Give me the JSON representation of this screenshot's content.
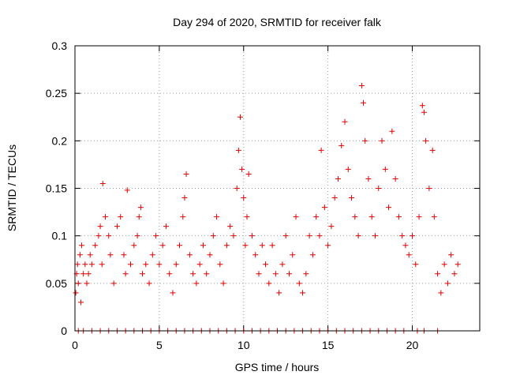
{
  "chart_data": {
    "type": "scatter",
    "title": "Day 294 of 2020, SRMTID for receiver falk",
    "xlabel": "GPS time / hours",
    "ylabel": "SRMTID / TECUs",
    "xlim": [
      0,
      24
    ],
    "ylim": [
      0,
      0.3
    ],
    "x_ticks": [
      0,
      5,
      10,
      15,
      20
    ],
    "x_tick_labels": [
      "0",
      "5",
      "10",
      "15",
      "20"
    ],
    "y_ticks": [
      0,
      0.05,
      0.1,
      0.15,
      0.2,
      0.25,
      0.3
    ],
    "y_tick_labels": [
      "0",
      "0.05",
      "0.1",
      "0.15",
      "0.2",
      "0.25",
      "0.3"
    ],
    "grid": true,
    "legend": "none",
    "marker": "+",
    "marker_color": "#e00000",
    "series": [
      {
        "name": "SRMTID",
        "points": [
          [
            0.05,
            0.04
          ],
          [
            0.1,
            0.06
          ],
          [
            0.15,
            0.07
          ],
          [
            0.2,
            0.05
          ],
          [
            0.3,
            0.08
          ],
          [
            0.35,
            0.03
          ],
          [
            0.4,
            0.09
          ],
          [
            0.5,
            0.06
          ],
          [
            0.6,
            0.07
          ],
          [
            0.7,
            0.05
          ],
          [
            0.8,
            0.06
          ],
          [
            0.9,
            0.08
          ],
          [
            1.0,
            0.07
          ],
          [
            1.2,
            0.09
          ],
          [
            1.4,
            0.1
          ],
          [
            1.5,
            0.11
          ],
          [
            1.6,
            0.07
          ],
          [
            1.65,
            0.155
          ],
          [
            1.8,
            0.12
          ],
          [
            2.0,
            0.1
          ],
          [
            2.1,
            0.08
          ],
          [
            2.3,
            0.05
          ],
          [
            2.5,
            0.11
          ],
          [
            2.7,
            0.12
          ],
          [
            2.9,
            0.08
          ],
          [
            3.0,
            0.06
          ],
          [
            3.1,
            0.148
          ],
          [
            3.3,
            0.07
          ],
          [
            3.5,
            0.09
          ],
          [
            3.7,
            0.1
          ],
          [
            3.8,
            0.12
          ],
          [
            3.9,
            0.13
          ],
          [
            4.0,
            0.06
          ],
          [
            4.2,
            0.07
          ],
          [
            4.4,
            0.05
          ],
          [
            4.6,
            0.08
          ],
          [
            4.8,
            0.1
          ],
          [
            5.0,
            0.07
          ],
          [
            5.2,
            0.09
          ],
          [
            5.4,
            0.11
          ],
          [
            5.6,
            0.06
          ],
          [
            5.8,
            0.04
          ],
          [
            6.0,
            0.07
          ],
          [
            6.2,
            0.09
          ],
          [
            6.4,
            0.12
          ],
          [
            6.5,
            0.14
          ],
          [
            6.6,
            0.165
          ],
          [
            6.8,
            0.08
          ],
          [
            7.0,
            0.06
          ],
          [
            7.2,
            0.05
          ],
          [
            7.4,
            0.07
          ],
          [
            7.6,
            0.09
          ],
          [
            7.8,
            0.06
          ],
          [
            8.0,
            0.08
          ],
          [
            8.2,
            0.1
          ],
          [
            8.4,
            0.12
          ],
          [
            8.6,
            0.07
          ],
          [
            8.8,
            0.05
          ],
          [
            9.0,
            0.09
          ],
          [
            9.2,
            0.11
          ],
          [
            9.4,
            0.1
          ],
          [
            9.6,
            0.15
          ],
          [
            9.7,
            0.19
          ],
          [
            9.8,
            0.225
          ],
          [
            9.9,
            0.17
          ],
          [
            10.0,
            0.14
          ],
          [
            10.1,
            0.09
          ],
          [
            10.2,
            0.12
          ],
          [
            10.3,
            0.165
          ],
          [
            10.5,
            0.1
          ],
          [
            10.7,
            0.08
          ],
          [
            10.9,
            0.06
          ],
          [
            11.1,
            0.09
          ],
          [
            11.3,
            0.07
          ],
          [
            11.5,
            0.05
          ],
          [
            11.7,
            0.09
          ],
          [
            11.9,
            0.06
          ],
          [
            12.1,
            0.04
          ],
          [
            12.3,
            0.07
          ],
          [
            12.5,
            0.1
          ],
          [
            12.7,
            0.06
          ],
          [
            12.9,
            0.08
          ],
          [
            13.1,
            0.12
          ],
          [
            13.3,
            0.05
          ],
          [
            13.5,
            0.04
          ],
          [
            13.7,
            0.06
          ],
          [
            13.9,
            0.1
          ],
          [
            14.1,
            0.08
          ],
          [
            14.3,
            0.12
          ],
          [
            14.5,
            0.1
          ],
          [
            14.6,
            0.19
          ],
          [
            14.8,
            0.13
          ],
          [
            15.0,
            0.09
          ],
          [
            15.2,
            0.11
          ],
          [
            15.4,
            0.14
          ],
          [
            15.6,
            0.16
          ],
          [
            15.8,
            0.195
          ],
          [
            16.0,
            0.22
          ],
          [
            16.2,
            0.17
          ],
          [
            16.4,
            0.14
          ],
          [
            16.6,
            0.12
          ],
          [
            16.8,
            0.1
          ],
          [
            17.0,
            0.258
          ],
          [
            17.1,
            0.24
          ],
          [
            17.2,
            0.2
          ],
          [
            17.4,
            0.16
          ],
          [
            17.6,
            0.12
          ],
          [
            17.8,
            0.1
          ],
          [
            18.0,
            0.15
          ],
          [
            18.2,
            0.2
          ],
          [
            18.4,
            0.17
          ],
          [
            18.6,
            0.13
          ],
          [
            18.8,
            0.21
          ],
          [
            19.0,
            0.16
          ],
          [
            19.2,
            0.12
          ],
          [
            19.4,
            0.1
          ],
          [
            19.6,
            0.09
          ],
          [
            19.8,
            0.08
          ],
          [
            20.0,
            0.1
          ],
          [
            20.2,
            0.07
          ],
          [
            20.4,
            0.12
          ],
          [
            20.6,
            0.237
          ],
          [
            20.7,
            0.23
          ],
          [
            20.8,
            0.2
          ],
          [
            21.0,
            0.15
          ],
          [
            21.2,
            0.19
          ],
          [
            21.3,
            0.12
          ],
          [
            21.5,
            0.06
          ],
          [
            21.7,
            0.04
          ],
          [
            21.9,
            0.07
          ],
          [
            22.1,
            0.05
          ],
          [
            22.3,
            0.08
          ],
          [
            22.5,
            0.06
          ],
          [
            22.7,
            0.07
          ],
          [
            0.2,
            0
          ],
          [
            0.5,
            0
          ],
          [
            1.0,
            0
          ],
          [
            1.5,
            0
          ],
          [
            2.0,
            0
          ],
          [
            2.5,
            0
          ],
          [
            3.0,
            0
          ],
          [
            3.5,
            0
          ],
          [
            4.0,
            0
          ],
          [
            4.5,
            0
          ],
          [
            5.0,
            0
          ],
          [
            5.5,
            0
          ],
          [
            6.0,
            0
          ],
          [
            6.5,
            0
          ],
          [
            7.0,
            0
          ],
          [
            7.5,
            0
          ],
          [
            8.0,
            0
          ],
          [
            8.5,
            0
          ],
          [
            9.0,
            0
          ],
          [
            9.5,
            0
          ],
          [
            10.0,
            0
          ],
          [
            10.5,
            0
          ],
          [
            11.0,
            0
          ],
          [
            11.5,
            0
          ],
          [
            12.0,
            0
          ],
          [
            12.5,
            0
          ],
          [
            13.0,
            0
          ],
          [
            13.5,
            0
          ],
          [
            14.0,
            0
          ],
          [
            14.5,
            0
          ],
          [
            15.0,
            0
          ],
          [
            15.5,
            0
          ],
          [
            16.0,
            0
          ],
          [
            16.5,
            0
          ],
          [
            17.0,
            0
          ],
          [
            17.5,
            0
          ],
          [
            18.0,
            0
          ],
          [
            18.5,
            0
          ],
          [
            19.0,
            0
          ],
          [
            19.5,
            0
          ],
          [
            20.3,
            0
          ],
          [
            20.7,
            0
          ],
          [
            21.5,
            0
          ]
        ]
      }
    ]
  }
}
